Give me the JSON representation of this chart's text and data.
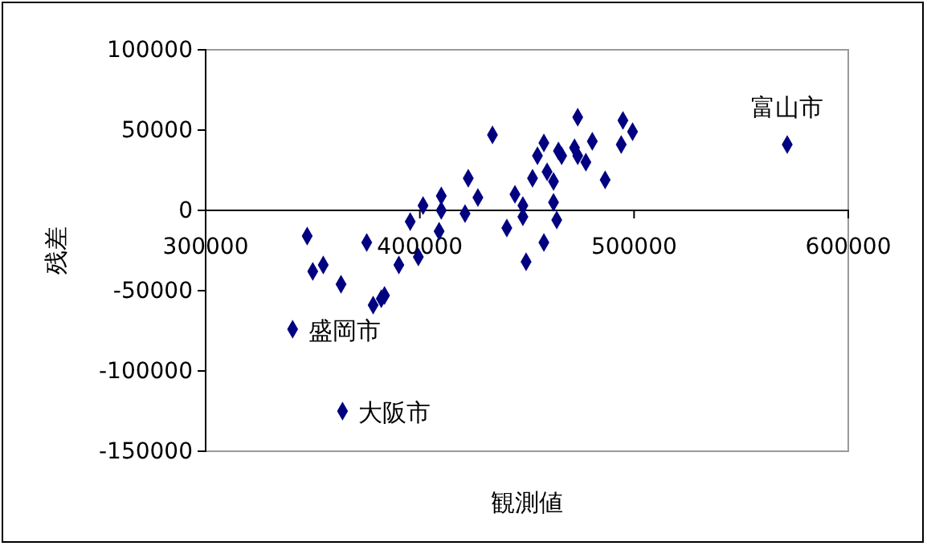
{
  "chart_data": {
    "type": "scatter",
    "xlabel": "観測値",
    "ylabel": "残差",
    "x": [
      340600,
      363900,
      571500,
      347400,
      350000,
      354900,
      363200,
      375200,
      378200,
      382000,
      383500,
      390200,
      395500,
      399300,
      401500,
      409000,
      410000,
      410000,
      421100,
      422600,
      427100,
      433900,
      440600,
      444400,
      448100,
      448100,
      449600,
      452600,
      454900,
      457900,
      457900,
      459400,
      462400,
      462400,
      463900,
      464700,
      466200,
      472200,
      473700,
      473700,
      477500,
      480500,
      486500,
      494000,
      494800,
      499300
    ],
    "values": [
      -74000,
      -125000,
      41000,
      -16000,
      -38000,
      -34000,
      -46000,
      -20000,
      -59000,
      -55000,
      -53000,
      -34000,
      -7000,
      -29000,
      3000,
      -13000,
      9000,
      0,
      -2000,
      20000,
      8000,
      47000,
      -11000,
      10000,
      3000,
      -4000,
      -32000,
      20000,
      34000,
      42000,
      -20000,
      24000,
      18000,
      5000,
      -6000,
      37000,
      34000,
      39000,
      58000,
      34000,
      30000,
      43000,
      19000,
      41000,
      56000,
      49000
    ],
    "color": "#000080",
    "marker": "diamond",
    "xlim": [
      300000,
      600000
    ],
    "xticks": [
      300000,
      400000,
      500000,
      600000
    ],
    "ylim": [
      -150000,
      100000
    ],
    "yticks": [
      -150000,
      -100000,
      -50000,
      0,
      50000,
      100000
    ],
    "grid": false,
    "annotations": [
      {
        "text": "盛岡市",
        "x": 340600,
        "y": -74000
      },
      {
        "text": "大阪市",
        "x": 363900,
        "y": -125000
      },
      {
        "text": "富山市",
        "x": 571500,
        "y": 41000
      }
    ]
  }
}
